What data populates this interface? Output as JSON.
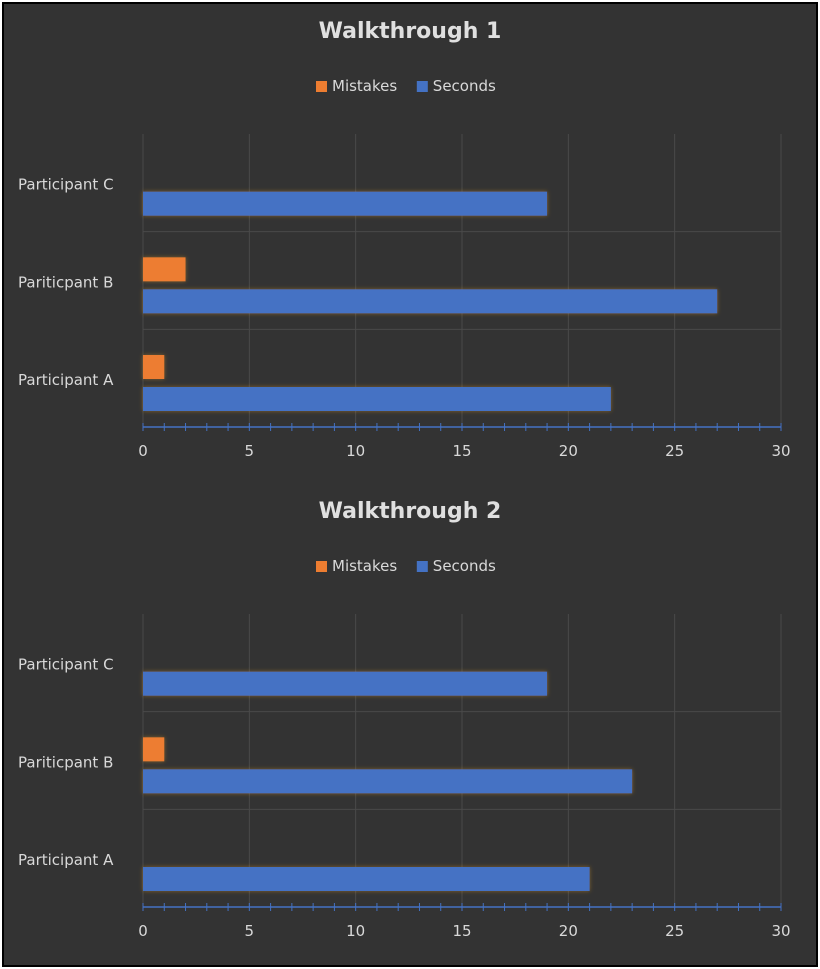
{
  "theme": {
    "background": "#333333",
    "grid": "#4a4a4a",
    "axis": "#4472c4",
    "text": "#d9d9d9",
    "title": "#e0e0e0"
  },
  "chart_data": [
    {
      "type": "bar",
      "orientation": "horizontal",
      "title": "Walkthrough 1",
      "categories": [
        "Participant A",
        "Pariticpant B",
        "Participant C"
      ],
      "series": [
        {
          "name": "Seconds",
          "color": "#4472c4",
          "values": [
            22,
            27,
            19
          ]
        },
        {
          "name": "Mistakes",
          "color": "#ed7d31",
          "values": [
            1,
            2,
            0
          ]
        }
      ],
      "legend_order": [
        "Mistakes",
        "Seconds"
      ],
      "legend_position": "top",
      "xlim": [
        0,
        30
      ],
      "xticks": [
        0,
        5,
        10,
        15,
        20,
        25,
        30
      ],
      "grid": true
    },
    {
      "type": "bar",
      "orientation": "horizontal",
      "title": "Walkthrough 2",
      "categories": [
        "Participant A",
        "Pariticpant B",
        "Participant C"
      ],
      "series": [
        {
          "name": "Seconds",
          "color": "#4472c4",
          "values": [
            21,
            23,
            19
          ]
        },
        {
          "name": "Mistakes",
          "color": "#ed7d31",
          "values": [
            0,
            1,
            0
          ]
        }
      ],
      "legend_order": [
        "Mistakes",
        "Seconds"
      ],
      "legend_position": "top",
      "xlim": [
        0,
        30
      ],
      "xticks": [
        0,
        5,
        10,
        15,
        20,
        25,
        30
      ],
      "grid": true
    }
  ]
}
